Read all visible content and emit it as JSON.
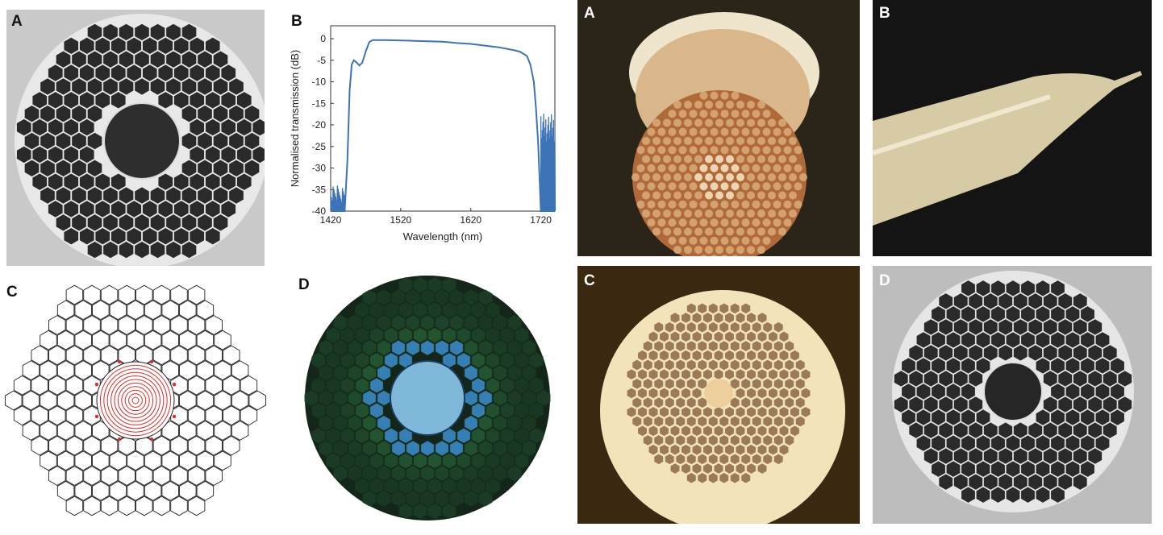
{
  "left_figure": {
    "panel_a": {
      "letter": "A"
    },
    "panel_b": {
      "letter": "B"
    },
    "panel_c": {
      "letter": "C"
    },
    "panel_d": {
      "letter": "D"
    }
  },
  "right_figure": {
    "panel_a": {
      "letter": "A"
    },
    "panel_b": {
      "letter": "B"
    },
    "panel_c": {
      "letter": "C"
    },
    "panel_d": {
      "letter": "D"
    }
  },
  "colors": {
    "line": "#3d74b8",
    "contour": "#d8302a",
    "micrograph_bg": "#c9c9c9",
    "micrograph_cell": "#2a2a2a",
    "green_cell": "#3a9a52",
    "blue_cell": "#3b8fd0",
    "copper": "#b06a3a",
    "cream": "#f3e3b8"
  },
  "chart_data": {
    "type": "line",
    "title": "",
    "xlabel": "Wavelength (nm)",
    "ylabel": "Normalised transmission (dB)",
    "xlim": [
      1420,
      1740
    ],
    "ylim": [
      -40,
      3
    ],
    "xticks": [
      1420,
      1520,
      1620,
      1720
    ],
    "yticks": [
      0,
      -5,
      -10,
      -15,
      -20,
      -25,
      -30,
      -35,
      -40
    ],
    "grid": false,
    "series": [
      {
        "x": [
          1420,
          1430,
          1440,
          1444,
          1447,
          1450,
          1453,
          1457,
          1461,
          1465,
          1470,
          1475,
          1480,
          1490,
          1500,
          1520,
          1540,
          1560,
          1580,
          1600,
          1620,
          1640,
          1660,
          1680,
          1690,
          1700,
          1705,
          1710,
          1713,
          1716,
          1718,
          1720,
          1722,
          1730,
          1740
        ],
        "y": [
          -40,
          -40,
          -40,
          -28,
          -12,
          -6,
          -5,
          -5.5,
          -6.2,
          -5.6,
          -3,
          -0.8,
          -0.3,
          -0.3,
          -0.3,
          -0.4,
          -0.5,
          -0.6,
          -0.7,
          -1,
          -1.2,
          -1.6,
          -2,
          -2.6,
          -3,
          -4,
          -6,
          -10,
          -16,
          -24,
          -32,
          -40,
          -40,
          -40,
          -40
        ]
      }
    ]
  }
}
